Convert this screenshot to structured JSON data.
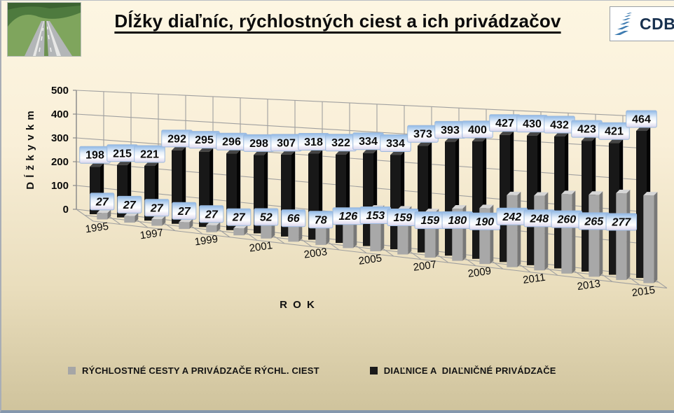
{
  "slide": {
    "title": "Dĺžky diaľníc, rýchlostných ciest a ich privádzačov",
    "logo_text": "CDB"
  },
  "chart_data": {
    "type": "bar",
    "projection": "3d",
    "title": "Dĺžky diaľníc, rýchlostných ciest a ich privádzačov",
    "xlabel": "R O K",
    "ylabel": "D ĺ ž k y  v  k m",
    "ylim": [
      0,
      500
    ],
    "ytick_step": 100,
    "yticks": [
      "0",
      "100",
      "200",
      "300",
      "400",
      "500"
    ],
    "grid": true,
    "legend_position": "bottom",
    "categories": [
      1995,
      1996,
      1997,
      1998,
      1999,
      2000,
      2001,
      2002,
      2003,
      2004,
      2005,
      2006,
      2007,
      2008,
      2009,
      2010,
      2011,
      2012,
      2013,
      2014,
      2015
    ],
    "xtick_labels": [
      "1995",
      "1997",
      "1999",
      "2001",
      "2003",
      "2005",
      "2007",
      "2009",
      "2011",
      "2013",
      "2015"
    ],
    "series": [
      {
        "name": "RÝCHLOSTNÉ CESTY A PRIVÁDZAČE RÝCHL. CIEST",
        "color": "#a6a6a6",
        "row": "front",
        "label_style": "italic",
        "values": [
          27,
          27,
          27,
          27,
          27,
          27,
          52,
          66,
          78,
          126,
          153,
          159,
          159,
          180,
          190,
          242,
          248,
          260,
          265,
          277,
          277
        ],
        "labels": [
          "27",
          "27",
          "27",
          "27",
          "27",
          "27",
          "52",
          "66",
          "78",
          "126",
          "153",
          "159",
          "159",
          "180",
          "190",
          "242",
          "248",
          "260",
          "265",
          "277",
          ""
        ]
      },
      {
        "name": "DIAĽNICE A  DIAĽNIČNÉ PRIVÁDZAČE",
        "color": "#1a1a1a",
        "row": "back",
        "label_style": "normal",
        "values": [
          198,
          215,
          221,
          292,
          295,
          296,
          298,
          307,
          318,
          322,
          334,
          334,
          373,
          393,
          400,
          427,
          430,
          432,
          423,
          421,
          464
        ],
        "labels": [
          "198",
          "215",
          "221",
          "292",
          "295",
          "296",
          "298",
          "307",
          "318",
          "322",
          "334",
          "334",
          "373",
          "393",
          "400",
          "427",
          "430",
          "432",
          "423",
          "421",
          "464"
        ]
      }
    ]
  }
}
